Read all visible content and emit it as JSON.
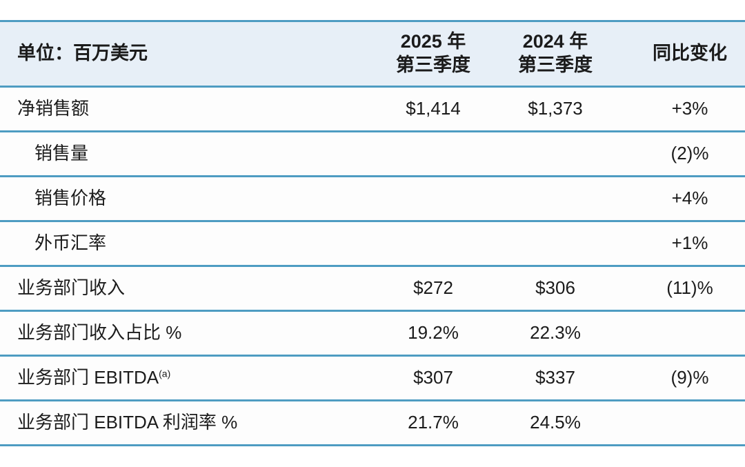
{
  "colors": {
    "accent": "#4e9cc2",
    "header-bg": "#e7eff7",
    "row-bg": "#fdfdfd",
    "text": "#1b1b1b"
  },
  "table": {
    "unit_label": "单位：百万美元",
    "columns": [
      {
        "line1": "2025 年",
        "line2": "第三季度"
      },
      {
        "line1": "2024 年",
        "line2": "第三季度"
      },
      {
        "line1": "同比变化",
        "line2": ""
      }
    ],
    "rows": [
      {
        "label": "净销售额",
        "indent": false,
        "sup": "",
        "q3_2025": "$1,414",
        "q3_2024": "$1,373",
        "yoy": "+3%"
      },
      {
        "label": "销售量",
        "indent": true,
        "sup": "",
        "q3_2025": "",
        "q3_2024": "",
        "yoy": "(2)%"
      },
      {
        "label": "销售价格",
        "indent": true,
        "sup": "",
        "q3_2025": "",
        "q3_2024": "",
        "yoy": "+4%"
      },
      {
        "label": "外币汇率",
        "indent": true,
        "sup": "",
        "q3_2025": "",
        "q3_2024": "",
        "yoy": "+1%"
      },
      {
        "label": "业务部门收入",
        "indent": false,
        "sup": "",
        "q3_2025": "$272",
        "q3_2024": "$306",
        "yoy": "(11)%"
      },
      {
        "label": "业务部门收入占比 %",
        "indent": false,
        "sup": "",
        "q3_2025": "19.2%",
        "q3_2024": "22.3%",
        "yoy": ""
      },
      {
        "label": "业务部门 EBITDA",
        "indent": false,
        "sup": "(a)",
        "q3_2025": "$307",
        "q3_2024": "$337",
        "yoy": "(9)%"
      },
      {
        "label": "业务部门 EBITDA 利润率 %",
        "indent": false,
        "sup": "",
        "q3_2025": "21.7%",
        "q3_2024": "24.5%",
        "yoy": ""
      }
    ]
  }
}
